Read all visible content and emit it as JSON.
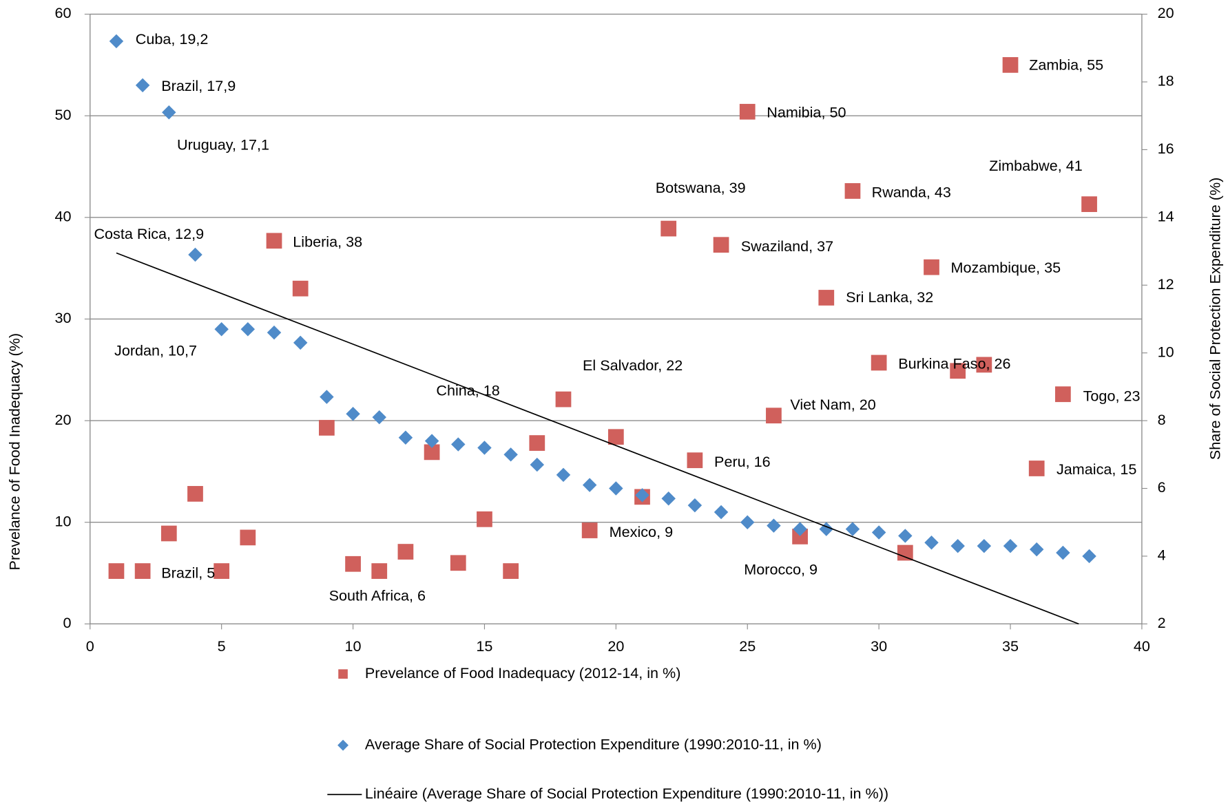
{
  "chart_data": {
    "type": "scatter",
    "y_label": "Prevelance of Food Inadequacy (%)",
    "y2_label": "Share of Social Protection Expenditure (%)",
    "xlim": [
      0,
      40
    ],
    "xticks": [
      0,
      5,
      10,
      15,
      20,
      25,
      30,
      35,
      40
    ],
    "ylim": [
      0,
      60
    ],
    "yticks": [
      0,
      10,
      20,
      30,
      40,
      50,
      60
    ],
    "y2lim": [
      2,
      20
    ],
    "y2ticks": [
      2,
      4,
      6,
      8,
      10,
      12,
      14,
      16,
      18,
      20
    ],
    "grid": true,
    "series": [
      {
        "name": "Prevelance of Food Inadequacy (2012-14, in %)",
        "color": "#d0605c",
        "marker": "square",
        "x": [
          1,
          2,
          3,
          4,
          5,
          6,
          7,
          8,
          9,
          10,
          11,
          12,
          13,
          14,
          15,
          16,
          17,
          18,
          19,
          20,
          21,
          22,
          23,
          24,
          25,
          26,
          27,
          28,
          29,
          30,
          31,
          32,
          33,
          34,
          35,
          36,
          37,
          38
        ],
        "values": [
          5.2,
          5.2,
          8.9,
          12.8,
          5.2,
          8.5,
          37.7,
          33.0,
          19.3,
          5.9,
          5.2,
          7.1,
          16.9,
          6.0,
          10.3,
          5.2,
          17.8,
          22.1,
          9.2,
          18.4,
          12.5,
          38.9,
          16.1,
          37.3,
          50.4,
          20.5,
          8.6,
          32.1,
          42.6,
          25.7,
          7.0,
          35.1,
          24.9,
          25.5,
          55.0,
          15.3,
          22.6,
          41.3
        ]
      },
      {
        "name": "Average Share of Social Protection Expenditure (1990:2010-11, in %)",
        "color": "#4f8bc9",
        "marker": "diamond",
        "axis": "y2",
        "x": [
          1,
          2,
          3,
          4,
          5,
          6,
          7,
          8,
          9,
          10,
          11,
          12,
          13,
          14,
          15,
          16,
          17,
          18,
          19,
          20,
          21,
          22,
          23,
          24,
          25,
          26,
          27,
          28,
          29,
          30,
          31,
          32,
          33,
          34,
          35,
          36,
          37,
          38
        ],
        "values": [
          19.2,
          17.9,
          17.1,
          12.9,
          10.7,
          10.7,
          10.6,
          10.3,
          8.7,
          8.2,
          8.1,
          7.5,
          7.4,
          7.3,
          7.2,
          7.0,
          6.7,
          6.4,
          6.1,
          6.0,
          5.8,
          5.7,
          5.5,
          5.3,
          5.0,
          4.9,
          4.8,
          4.8,
          4.8,
          4.7,
          4.6,
          4.4,
          4.3,
          4.3,
          4.3,
          4.2,
          4.1,
          4.0
        ]
      },
      {
        "name": "Linéaire (Average Share of Social Protection Expenditure (1990:2010-11, in %))",
        "color": "#000000",
        "marker": "line",
        "axis": "y2",
        "x": [
          1,
          37.6
        ],
        "values": [
          12.95,
          2.0
        ]
      }
    ],
    "annotations": [
      "Cuba, 19,2",
      "Brazil, 17,9",
      "Uruguay, 17,1",
      "Costa Rica, 12,9",
      "Liberia, 38",
      "Jordan, 10,7",
      "China, 18",
      "El Salvador, 22",
      "Botswana, 39",
      "Namibia, 50",
      "Zambia, 55",
      "Zimbabwe, 41",
      "Rwanda, 43",
      "Swaziland, 37",
      "Mozambique, 35",
      "Sri Lanka, 32",
      "Burkina Faso, 26",
      "Viet Nam, 20",
      "Togo, 23",
      "Peru, 16",
      "Jamaica, 15",
      "Mexico, 9",
      "Morocco, 9",
      "Brazil, 5",
      "South Africa, 6"
    ]
  }
}
